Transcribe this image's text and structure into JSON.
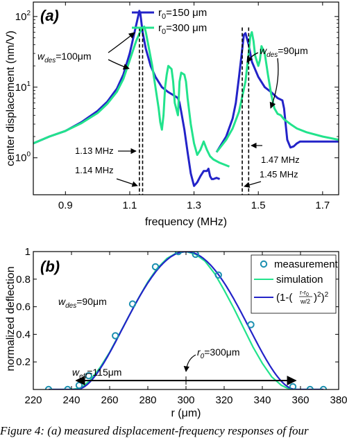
{
  "colors": {
    "series1": "#2323c8",
    "series2": "#22e38c",
    "marker": "#1a8fb0",
    "axis": "#000000"
  },
  "caption": "Figure 4: (a) measured displacement-frequency responses of four",
  "chart_data": [
    {
      "type": "line",
      "panel_label": "(a)",
      "xlabel": "frequency (MHz)",
      "ylabel": "center displacement (nm/V)",
      "xlim": [
        0.8,
        1.75
      ],
      "ylim": [
        0.3,
        160
      ],
      "yscale": "log",
      "xticks": [
        0.9,
        1.1,
        1.3,
        1.5,
        1.7
      ],
      "xtick_labels": [
        "0.9",
        "1.1",
        "1.3",
        "1.5",
        "1.7"
      ],
      "yticks": [
        1,
        10,
        100
      ],
      "ytick_labels": [
        "10",
        "10",
        "10"
      ],
      "ytick_exponents": [
        "0",
        "1",
        "2"
      ],
      "legend": {
        "position": "top-center",
        "entries": [
          {
            "prefix": "r",
            "sub": "0",
            "suffix": "=150 μm"
          },
          {
            "prefix": "r",
            "sub": "0",
            "suffix": "=300 μm"
          }
        ]
      },
      "series": [
        {
          "name": "r0=150 μm",
          "segments": [
            {
              "x": [
                0.8,
                0.85,
                0.9,
                0.95,
                1.0,
                1.03,
                1.06,
                1.08,
                1.1,
                1.115,
                1.125,
                1.13,
                1.133,
                1.14,
                1.15,
                1.165,
                1.18,
                1.2,
                1.22,
                1.24,
                1.25,
                1.255,
                1.26,
                1.27,
                1.28,
                1.29,
                1.3,
                1.31,
                1.32,
                1.33,
                1.34,
                1.345,
                1.35,
                1.355,
                1.36,
                1.37,
                1.38
              ],
              "y": [
                1.6,
                2.0,
                2.4,
                3.2,
                4.6,
                6.2,
                9.5,
                15,
                30,
                60,
                95,
                120,
                110,
                60,
                35,
                20,
                14,
                10,
                8.5,
                7.5,
                7,
                6,
                4.5,
                2.5,
                1.2,
                0.6,
                0.4,
                0.45,
                0.55,
                0.65,
                0.65,
                0.7,
                0.55,
                0.5,
                0.5,
                0.52,
                0.5
              ]
            },
            {
              "x": [
                1.37,
                1.4,
                1.42,
                1.43,
                1.44,
                1.45,
                1.455,
                1.46,
                1.47,
                1.48,
                1.5,
                1.52,
                1.54,
                1.56,
                1.575,
                1.58,
                1.585,
                1.59,
                1.6,
                1.61,
                1.62,
                1.63,
                1.65,
                1.7,
                1.75
              ],
              "y": [
                1.2,
                2.0,
                3.6,
                6.0,
                14,
                35,
                55,
                58,
                40,
                23,
                14,
                10,
                8.5,
                7.0,
                6.5,
                5.0,
                3.0,
                1.8,
                1.4,
                1.45,
                1.6,
                1.7,
                1.7,
                1.7,
                1.7
              ]
            }
          ]
        },
        {
          "name": "r0=300 μm",
          "segments": [
            {
              "x": [
                0.8,
                0.85,
                0.9,
                0.95,
                1.0,
                1.03,
                1.06,
                1.08,
                1.1,
                1.12,
                1.135,
                1.145,
                1.15,
                1.16,
                1.17,
                1.18,
                1.19,
                1.195,
                1.2,
                1.205,
                1.21,
                1.215,
                1.22,
                1.23,
                1.235,
                1.24,
                1.25,
                1.255,
                1.26,
                1.27,
                1.275,
                1.28,
                1.29,
                1.3,
                1.31,
                1.32,
                1.33,
                1.34,
                1.35,
                1.36,
                1.38,
                1.41
              ],
              "y": [
                1.6,
                2.0,
                2.4,
                3.1,
                4.3,
                5.8,
                8.6,
                13,
                24,
                45,
                65,
                72,
                60,
                35,
                20,
                10,
                5,
                3.2,
                2.5,
                4,
                10,
                15,
                20,
                18,
                12,
                6,
                4,
                12,
                16,
                15,
                12,
                7,
                3,
                1.6,
                1.1,
                1.3,
                1.7,
                1.3,
                1.05,
                0.95,
                0.85,
                0.75
              ]
            },
            {
              "x": [
                1.37,
                1.4,
                1.42,
                1.44,
                1.46,
                1.47,
                1.475,
                1.48,
                1.485,
                1.49,
                1.5,
                1.505,
                1.51,
                1.52,
                1.53,
                1.54,
                1.55,
                1.56,
                1.57,
                1.58,
                1.6,
                1.62,
                1.65,
                1.7,
                1.75
              ],
              "y": [
                1.2,
                1.8,
                2.6,
                4.5,
                12,
                30,
                52,
                60,
                45,
                28,
                20,
                24,
                38,
                30,
                15,
                8,
                5,
                4.2,
                4.0,
                3.5,
                3.0,
                2.6,
                2.3,
                2.0,
                1.8
              ]
            }
          ]
        }
      ],
      "dashed_lines_x": [
        1.13,
        1.14,
        1.45,
        1.47
      ],
      "annotations": {
        "w_des_left": {
          "prefix": "w",
          "sub": "des",
          "suffix": "=100μm"
        },
        "w_des_right": {
          "prefix": "w",
          "sub": "des",
          "suffix": "=90μm"
        },
        "freq_113": "1.13 MHz",
        "freq_114": "1.14 MHz",
        "freq_147": "1.47 MHz",
        "freq_145": "1.45 MHz"
      }
    },
    {
      "type": "line+scatter",
      "panel_label": "(b)",
      "xlabel": "r (μm)",
      "ylabel": "normalized deflection",
      "xlim": [
        220,
        380
      ],
      "ylim": [
        0,
        1
      ],
      "xticks": [
        220,
        240,
        260,
        280,
        300,
        320,
        340,
        360,
        380
      ],
      "xtick_labels": [
        "220",
        "240",
        "260",
        "280",
        "300",
        "320",
        "340",
        "360",
        "380"
      ],
      "yticks": [
        0.2,
        0.4,
        0.6,
        0.8,
        1.0
      ],
      "ytick_labels": [
        "0.2",
        "0.4",
        "0.6",
        "0.8",
        "1"
      ],
      "legend": {
        "position": "top-right",
        "entries": [
          "measurement",
          "simulation",
          "(1-(r-r0 / w/2)^2)^2"
        ]
      },
      "measurement": {
        "name": "measurement",
        "x": [
          228,
          238,
          244,
          249,
          263,
          272,
          284,
          296,
          305,
          317,
          334,
          356,
          365,
          372
        ],
        "y": [
          0.0,
          0.0,
          0.03,
          0.1,
          0.39,
          0.62,
          0.89,
          1.0,
          0.98,
          0.83,
          0.47,
          0.02,
          0.0,
          0.0
        ]
      },
      "simulation": {
        "name": "simulation",
        "x": [
          228,
          240,
          245,
          250,
          255,
          260,
          265,
          270,
          275,
          280,
          285,
          290,
          295,
          300,
          305,
          310,
          315,
          320,
          325,
          330,
          335,
          340,
          345,
          350,
          353,
          356,
          365,
          372
        ],
        "y": [
          0,
          0,
          0.01,
          0.07,
          0.16,
          0.27,
          0.4,
          0.53,
          0.66,
          0.78,
          0.88,
          0.95,
          0.99,
          1.0,
          0.98,
          0.93,
          0.84,
          0.72,
          0.59,
          0.45,
          0.31,
          0.19,
          0.09,
          0.03,
          0.01,
          0,
          0,
          0
        ]
      },
      "model_curve": {
        "name": "(1-((r-r0)/(w/2))^2)^2",
        "r0": 300,
        "w": 115,
        "x_range": [
          228,
          372
        ]
      },
      "annotations": {
        "w_des": {
          "prefix": "w",
          "sub": "des",
          "suffix": "=90μm"
        },
        "r0": {
          "prefix": "r",
          "sub": "0",
          "suffix": "=300μm"
        },
        "w_eff": {
          "prefix": "w",
          "sub": "eff",
          "suffix": "=115μm"
        },
        "w_eff_arrow_x": [
          242.5,
          357.5
        ],
        "w_eff_arrow_y": 0.065
      }
    }
  ]
}
